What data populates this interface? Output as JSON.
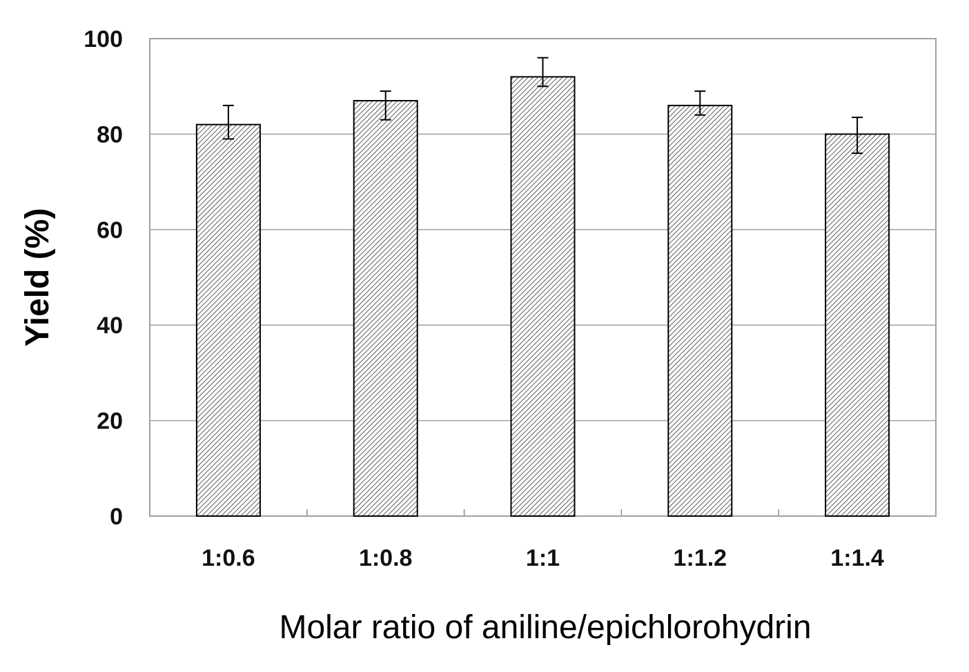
{
  "chart_data": {
    "type": "bar",
    "title": "",
    "xlabel": "Molar ratio of aniline/epichlorohydrin",
    "ylabel": "Yield (%)",
    "categories": [
      "1:0.6",
      "1:0.8",
      "1:1",
      "1:1.2",
      "1:1.4"
    ],
    "values": [
      82,
      87,
      92,
      86,
      80
    ],
    "error_high": [
      86,
      89,
      96,
      89,
      83.5
    ],
    "error_low": [
      79,
      83,
      90,
      84,
      76
    ],
    "ylim": [
      0,
      100
    ],
    "yticks": [
      0,
      20,
      40,
      60,
      80,
      100
    ],
    "grid": true,
    "bar_fill": "diagonal hatch",
    "colors": {
      "bar_stroke": "#000000",
      "grid": "#a0a0a0",
      "hatch": "#333333"
    }
  }
}
